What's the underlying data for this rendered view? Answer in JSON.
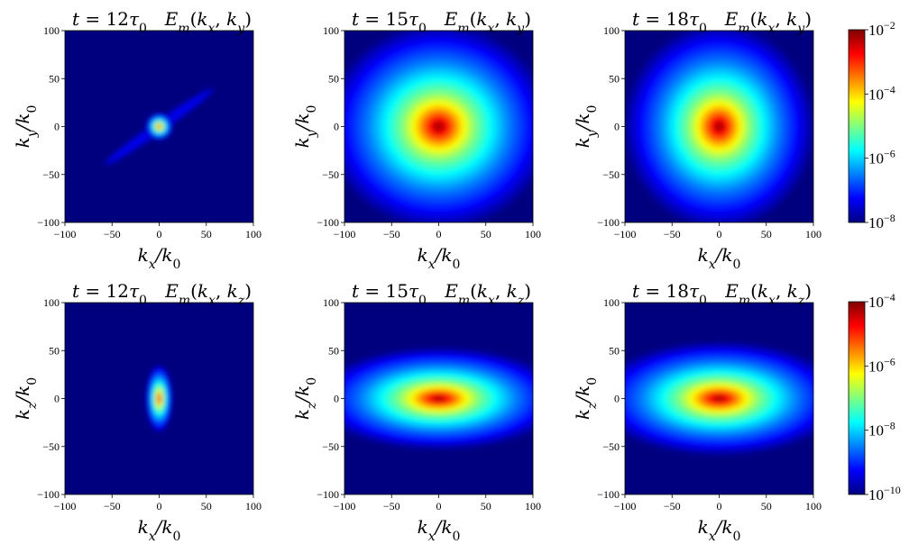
{
  "chart_data": [
    {
      "type": "heatmap",
      "row": "top",
      "title_left": "t = 12τ₀",
      "title_right": "E_m(k_x, k_y)",
      "xlabel": "k_x/k_0",
      "ylabel": "k_y/k_0",
      "xlim": [
        -100,
        100
      ],
      "ylim": [
        -100,
        100
      ],
      "xticks": [
        -100,
        -50,
        0,
        50,
        100
      ],
      "yticks": [
        -100,
        -50,
        0,
        50,
        100
      ],
      "spectrum": {
        "shape": "compact-diagonal",
        "peak_at": [
          0,
          0
        ],
        "extent_x": 12,
        "extent_y": 12,
        "streak_angle_deg": 35,
        "streak_length": 70
      }
    },
    {
      "type": "heatmap",
      "row": "top",
      "title_left": "t = 15τ₀",
      "title_right": "E_m(k_x, k_y)",
      "xlabel": "k_x/k_0",
      "ylabel": "k_y/k_0",
      "xlim": [
        -100,
        100
      ],
      "ylim": [
        -100,
        100
      ],
      "xticks": [
        -100,
        -50,
        0,
        50,
        100
      ],
      "yticks": [
        -100,
        -50,
        0,
        50,
        100
      ],
      "spectrum": {
        "shape": "broad-isotropic",
        "peak_at": [
          0,
          0
        ],
        "extent_x": 100,
        "extent_y": 90
      }
    },
    {
      "type": "heatmap",
      "row": "top",
      "title_left": "t = 18τ₀",
      "title_right": "E_m(k_x, k_y)",
      "xlabel": "k_x/k_0",
      "ylabel": "k_y/k_0",
      "xlim": [
        -100,
        100
      ],
      "ylim": [
        -100,
        100
      ],
      "xticks": [
        -100,
        -50,
        0,
        50,
        100
      ],
      "yticks": [
        -100,
        -50,
        0,
        50,
        100
      ],
      "spectrum": {
        "shape": "broad-isotropic",
        "peak_at": [
          0,
          0
        ],
        "extent_x": 85,
        "extent_y": 90
      }
    },
    {
      "type": "heatmap",
      "row": "bottom",
      "title_left": "t = 12τ₀",
      "title_right": "E_m(k_x, k_z)",
      "xlabel": "k_x/k_0",
      "ylabel": "k_z/k_0",
      "xlim": [
        -100,
        100
      ],
      "ylim": [
        -100,
        100
      ],
      "xticks": [
        -100,
        -50,
        0,
        50,
        100
      ],
      "yticks": [
        -100,
        -50,
        0,
        50,
        100
      ],
      "spectrum": {
        "shape": "compact-vertical",
        "peak_at": [
          0,
          0
        ],
        "extent_x": 12,
        "extent_y": 30
      }
    },
    {
      "type": "heatmap",
      "row": "bottom",
      "title_left": "t = 15τ₀",
      "title_right": "E_m(k_x, k_z)",
      "xlabel": "k_x/k_0",
      "ylabel": "k_z/k_0",
      "xlim": [
        -100,
        100
      ],
      "ylim": [
        -100,
        100
      ],
      "xticks": [
        -100,
        -50,
        0,
        50,
        100
      ],
      "yticks": [
        -100,
        -50,
        0,
        50,
        100
      ],
      "spectrum": {
        "shape": "horizontal-elongated",
        "peak_at": [
          0,
          0
        ],
        "extent_x": 110,
        "extent_y": 45
      }
    },
    {
      "type": "heatmap",
      "row": "bottom",
      "title_left": "t = 18τ₀",
      "title_right": "E_m(k_x, k_z)",
      "xlabel": "k_x/k_0",
      "ylabel": "k_z/k_0",
      "xlim": [
        -100,
        100
      ],
      "ylim": [
        -100,
        100
      ],
      "xticks": [
        -100,
        -50,
        0,
        50,
        100
      ],
      "yticks": [
        -100,
        -50,
        0,
        50,
        100
      ],
      "spectrum": {
        "shape": "horizontal-elongated",
        "peak_at": [
          0,
          0
        ],
        "extent_x": 110,
        "extent_y": 50
      }
    }
  ],
  "colorbars": [
    {
      "row": "top",
      "colormap": "jet",
      "scale": "log",
      "range": [
        1e-08,
        0.01
      ],
      "tick_values": [
        0.01,
        0.0001,
        1e-06,
        1e-08
      ],
      "tick_base": [
        "10",
        "10",
        "10",
        "10"
      ],
      "tick_exponents": [
        "−2",
        "−4",
        "−6",
        "−8"
      ]
    },
    {
      "row": "bottom",
      "colormap": "jet",
      "scale": "log",
      "range": [
        1e-10,
        0.0001
      ],
      "tick_values": [
        0.0001,
        1e-06,
        1e-08,
        1e-10
      ],
      "tick_base": [
        "10",
        "10",
        "10",
        "10"
      ],
      "tick_exponents": [
        "−4",
        "−6",
        "−8",
        "−10"
      ]
    }
  ],
  "colors": {
    "background": "#00007f",
    "jet_stops": [
      "#00007f",
      "#0000ff",
      "#007fff",
      "#00ffff",
      "#7fff7f",
      "#ffff00",
      "#ff7f00",
      "#ff0000",
      "#7f0000"
    ]
  }
}
